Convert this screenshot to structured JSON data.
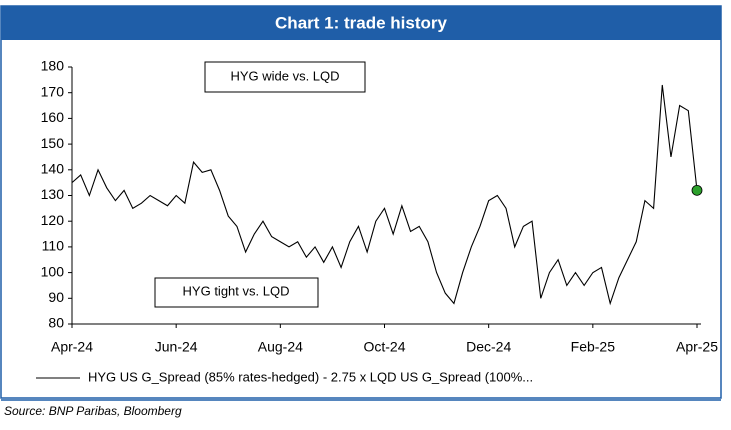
{
  "chart_data": {
    "type": "line",
    "title": "Chart 1: trade history",
    "categories": [
      "Apr-24",
      null,
      null,
      null,
      null,
      null,
      null,
      null,
      null,
      null,
      null,
      null,
      "Jun-24",
      null,
      null,
      null,
      null,
      null,
      null,
      null,
      null,
      null,
      null,
      null,
      "Aug-24",
      null,
      null,
      null,
      null,
      null,
      null,
      null,
      null,
      null,
      null,
      null,
      "Oct-24",
      null,
      null,
      null,
      null,
      null,
      null,
      null,
      null,
      null,
      null,
      null,
      "Dec-24",
      null,
      null,
      null,
      null,
      null,
      null,
      null,
      null,
      null,
      null,
      null,
      "Feb-25",
      null,
      null,
      null,
      null,
      null,
      null,
      null,
      null,
      null,
      null,
      null,
      "Apr-25"
    ],
    "series": [
      {
        "name": "HYG US G_Spread (85% rates-hedged) - 2.75 x LQD US G_Spread (100%...",
        "color": "#000000",
        "values": [
          135,
          138,
          130,
          140,
          133,
          128,
          132,
          125,
          127,
          130,
          128,
          126,
          130,
          127,
          143,
          139,
          140,
          132,
          122,
          118,
          108,
          115,
          120,
          114,
          112,
          110,
          112,
          106,
          110,
          104,
          110,
          102,
          112,
          118,
          108,
          120,
          125,
          115,
          126,
          116,
          118,
          112,
          100,
          92,
          88,
          100,
          110,
          118,
          128,
          130,
          125,
          110,
          118,
          120,
          90,
          100,
          105,
          95,
          100,
          95,
          100,
          102,
          88,
          98,
          105,
          112,
          128,
          125,
          173,
          145,
          165,
          163,
          132
        ]
      }
    ],
    "ylim": [
      80,
      180
    ],
    "yticks": [
      80,
      90,
      100,
      110,
      120,
      130,
      140,
      150,
      160,
      170,
      180
    ],
    "end_marker_color": "#2ca02c",
    "annotations": [
      "HYG wide vs. LQD",
      "HYG tight vs. LQD"
    ],
    "source": "Source: BNP Paribas, Bloomberg"
  }
}
